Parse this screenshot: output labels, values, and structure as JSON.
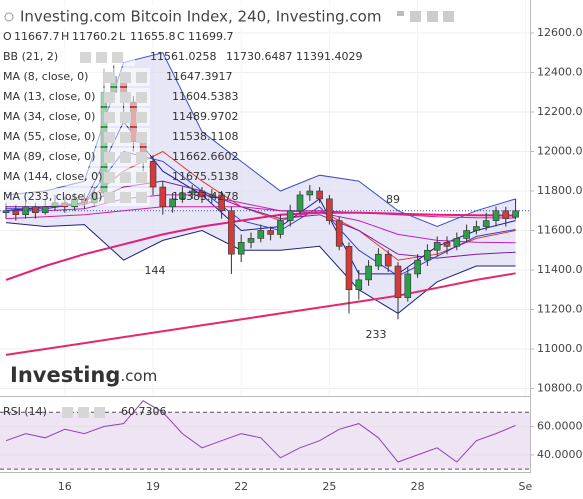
{
  "chart_data": {
    "type": "candlestick",
    "title": "Investing.com Bitcoin Index, 240, Investing.com",
    "ohlc_header": [
      {
        "label": "O",
        "value": 11667.7
      },
      {
        "label": "H",
        "value": 11760.2
      },
      {
        "label": "L",
        "value": 11655.8
      },
      {
        "label": "C",
        "value": 11699.7
      }
    ],
    "logo": [
      "Investing",
      ".com"
    ],
    "categories": [
      null,
      null,
      null,
      null,
      null,
      null,
      "16",
      null,
      null,
      null,
      null,
      null,
      null,
      null,
      null,
      "19",
      null,
      null,
      null,
      null,
      null,
      null,
      null,
      null,
      "22",
      null,
      null,
      null,
      null,
      null,
      null,
      null,
      null,
      "25",
      null,
      null,
      null,
      null,
      null,
      null,
      null,
      null,
      "28",
      null,
      null,
      null,
      null,
      null,
      null,
      null,
      null,
      null,
      null,
      "Se"
    ],
    "open": [
      11690,
      11700,
      11680,
      11720,
      11690,
      11720,
      11740,
      11720,
      11760,
      11740,
      11790,
      12300,
      12380,
      12250,
      12050,
      11950,
      11820,
      11720,
      11760,
      11790,
      11800,
      11770,
      11780,
      11700,
      11480,
      11540,
      11560,
      11600,
      11580,
      11650,
      11700,
      11780,
      11800,
      11760,
      11650,
      11520,
      11300,
      11350,
      11420,
      11480,
      11420,
      11260,
      11380,
      11450,
      11500,
      11540,
      11520,
      11560,
      11600,
      11620,
      11650,
      11700,
      11667.7,
      null
    ],
    "high": [
      11740,
      11730,
      11750,
      11740,
      11760,
      11780,
      11770,
      11790,
      11790,
      11820,
      12420,
      12440,
      12400,
      12280,
      12080,
      11980,
      11850,
      11790,
      11820,
      11830,
      11820,
      11810,
      11800,
      11720,
      11580,
      11590,
      11630,
      11620,
      11680,
      11730,
      11800,
      11830,
      11820,
      11780,
      11670,
      11540,
      11400,
      11450,
      11510,
      11500,
      11440,
      11410,
      11480,
      11530,
      11570,
      11570,
      11590,
      11630,
      11650,
      11690,
      11720,
      11720,
      11760.2,
      null
    ],
    "low": [
      11660,
      11650,
      11660,
      11660,
      11680,
      11700,
      11690,
      11700,
      11710,
      11720,
      11770,
      12250,
      12200,
      12000,
      11900,
      11780,
      11680,
      11690,
      11740,
      11760,
      11740,
      11740,
      11660,
      11380,
      11440,
      11510,
      11540,
      11550,
      11560,
      11620,
      11680,
      11750,
      11740,
      11630,
      11500,
      11180,
      11250,
      11320,
      11400,
      11390,
      11150,
      11240,
      11360,
      11420,
      11470,
      11480,
      11500,
      11540,
      11580,
      11600,
      11620,
      11620,
      11655.8,
      null
    ],
    "close": [
      11700,
      11680,
      11720,
      11690,
      11720,
      11740,
      11720,
      11760,
      11740,
      11790,
      12300,
      12380,
      12250,
      12050,
      11950,
      11820,
      11720,
      11760,
      11790,
      11800,
      11770,
      11780,
      11700,
      11480,
      11540,
      11560,
      11600,
      11580,
      11650,
      11700,
      11780,
      11800,
      11760,
      11650,
      11520,
      11300,
      11350,
      11420,
      11480,
      11420,
      11260,
      11380,
      11450,
      11500,
      11540,
      11520,
      11560,
      11600,
      11620,
      11650,
      11700,
      11660,
      11699.7,
      null
    ],
    "up_color": "#2e9d4a",
    "down_color": "#d23b3b",
    "ylim": [
      10762,
      12767
    ],
    "yticks": [
      {
        "value": 10800,
        "label": "10800.0"
      },
      {
        "value": 11000,
        "label": "11000.0"
      },
      {
        "value": 11200,
        "label": "11200.0"
      },
      {
        "value": 11400,
        "label": "11400.0"
      },
      {
        "value": 11600,
        "label": "11600.0"
      },
      {
        "value": 11800,
        "label": "11800.0"
      },
      {
        "value": 12000,
        "label": "12000.0"
      },
      {
        "value": 12200,
        "label": "12200.0"
      },
      {
        "value": 12400,
        "label": "12400.0"
      },
      {
        "value": 12600,
        "label": "12600.0"
      }
    ],
    "grid": true,
    "line_x": [
      0,
      4,
      8,
      12,
      16,
      20,
      24,
      28,
      32,
      36,
      40,
      44,
      48,
      52
    ],
    "bollinger": {
      "name": "BB (21, 2)",
      "fill": "#dcdcf4",
      "series": [
        {
          "color": "#e53935",
          "last": 11561.0258,
          "values": [
            11700,
            11710,
            11740,
            11900,
            12000,
            11850,
            11720,
            11650,
            11700,
            11600,
            11450,
            11480,
            11560,
            11600
          ]
        },
        {
          "color": "#3a4fc8",
          "last": 11730.6487,
          "values": [
            11780,
            11800,
            11850,
            12450,
            12500,
            12100,
            11950,
            11800,
            11880,
            11850,
            11700,
            11620,
            11700,
            11760
          ]
        },
        {
          "color": "#1a237e",
          "last": 11391.4029,
          "values": [
            11640,
            11620,
            11630,
            11450,
            11550,
            11600,
            11500,
            11500,
            11520,
            11300,
            11180,
            11340,
            11420,
            11420
          ]
        }
      ]
    },
    "indicators": [
      {
        "name": "MA (8, close, 0)",
        "color": "#1a1aa6",
        "last": 11647.3917,
        "values": [
          11700,
          11720,
          11740,
          12150,
          11900,
          11780,
          11600,
          11620,
          11760,
          11380,
          11380,
          11520,
          11600,
          11650
        ]
      },
      {
        "name": "MA (13, close, 0)",
        "color": "#3340d0",
        "last": 11604.5383,
        "values": [
          11710,
          11710,
          11740,
          12000,
          11950,
          11800,
          11650,
          11600,
          11720,
          11500,
          11370,
          11470,
          11570,
          11605
        ]
      },
      {
        "name": "MA (34, close, 0)",
        "color": "#7b1fa2",
        "last": 11489.9702,
        "values": [
          11720,
          11720,
          11730,
          11820,
          11850,
          11800,
          11720,
          11660,
          11680,
          11600,
          11480,
          11460,
          11480,
          11490
        ]
      },
      {
        "name": "MA (55, close, 0)",
        "color": "#c020c0",
        "last": 11538.1108,
        "values": [
          11700,
          11700,
          11710,
          11760,
          11780,
          11780,
          11740,
          11700,
          11690,
          11650,
          11580,
          11550,
          11540,
          11538
        ]
      },
      {
        "name": "MA (89, close, 0)",
        "color": "#d81b9a",
        "last": 11662.6602,
        "values": [
          11660,
          11670,
          11680,
          11700,
          11720,
          11720,
          11720,
          11700,
          11700,
          11690,
          11680,
          11670,
          11665,
          11663
        ]
      },
      {
        "name": "MA (144, close, 0)",
        "color": "#e0207a",
        "last": 11675.5138,
        "values": [
          11350,
          11420,
          11480,
          11530,
          11580,
          11620,
          11650,
          11680,
          11690,
          11690,
          11685,
          11680,
          11677,
          11676
        ]
      },
      {
        "name": "MA (233, close, 0)",
        "color": "#e6266e",
        "last": 11383.4278,
        "values": [
          10970,
          11000,
          11030,
          11060,
          11090,
          11120,
          11150,
          11180,
          11210,
          11240,
          11270,
          11310,
          11350,
          11383
        ]
      }
    ],
    "annotations": [
      "89",
      "144",
      "233"
    ],
    "rsi": {
      "name": "RSI (14)",
      "color": "#8e44ad",
      "fill": "#efe4f4",
      "last": 60.7306,
      "x": [
        0,
        2,
        4,
        6,
        8,
        10,
        12,
        14,
        16,
        18,
        20,
        22,
        24,
        26,
        28,
        30,
        32,
        34,
        36,
        38,
        40,
        42,
        44,
        46,
        48,
        50,
        52
      ],
      "values": [
        50,
        55,
        52,
        58,
        55,
        60,
        62,
        78,
        70,
        55,
        45,
        50,
        55,
        52,
        38,
        45,
        50,
        58,
        62,
        52,
        35,
        40,
        45,
        35,
        50,
        55,
        60.7306
      ],
      "ylim": [
        28,
        80
      ],
      "yticks": [
        {
          "value": 40,
          "label": "40.0000"
        },
        {
          "value": 60,
          "label": "60.0000"
        }
      ],
      "levels": [
        30,
        70
      ]
    }
  }
}
